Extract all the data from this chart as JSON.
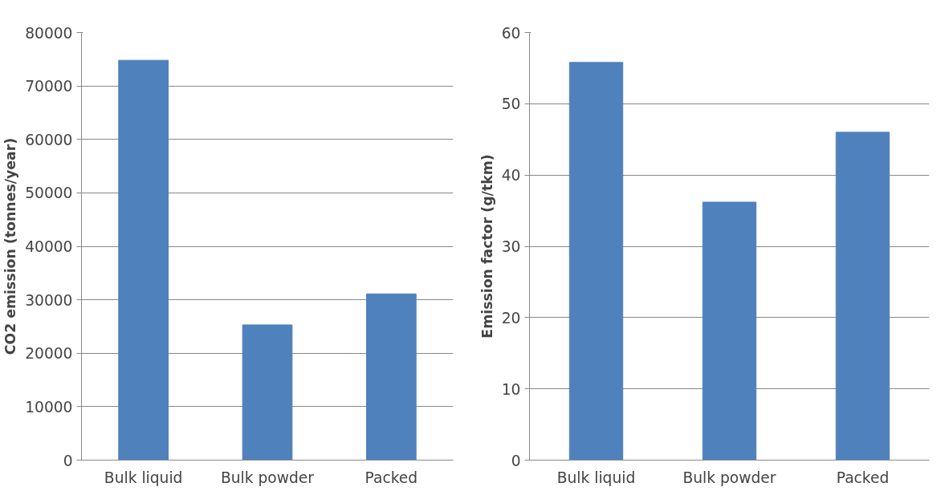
{
  "chart_data": [
    {
      "type": "bar",
      "ylabel": "CO2 emission (tonnes/year)",
      "categories": [
        "Bulk liquid",
        "Bulk powder",
        "Packed"
      ],
      "values": [
        74800,
        25300,
        31100
      ],
      "color": "#4f81bd",
      "ylim": [
        0,
        80000
      ],
      "yticks": [
        0,
        10000,
        20000,
        30000,
        40000,
        50000,
        60000,
        70000,
        80000
      ],
      "grid": "y"
    },
    {
      "type": "bar",
      "ylabel": "Emission factor (g/tkm)",
      "categories": [
        "Bulk liquid",
        "Bulk powder",
        "Packed"
      ],
      "values": [
        55.8,
        36.2,
        46.0
      ],
      "color": "#4f81bd",
      "ylim": [
        0,
        60
      ],
      "yticks": [
        0,
        10,
        20,
        30,
        40,
        50,
        60
      ],
      "grid": "y"
    }
  ]
}
